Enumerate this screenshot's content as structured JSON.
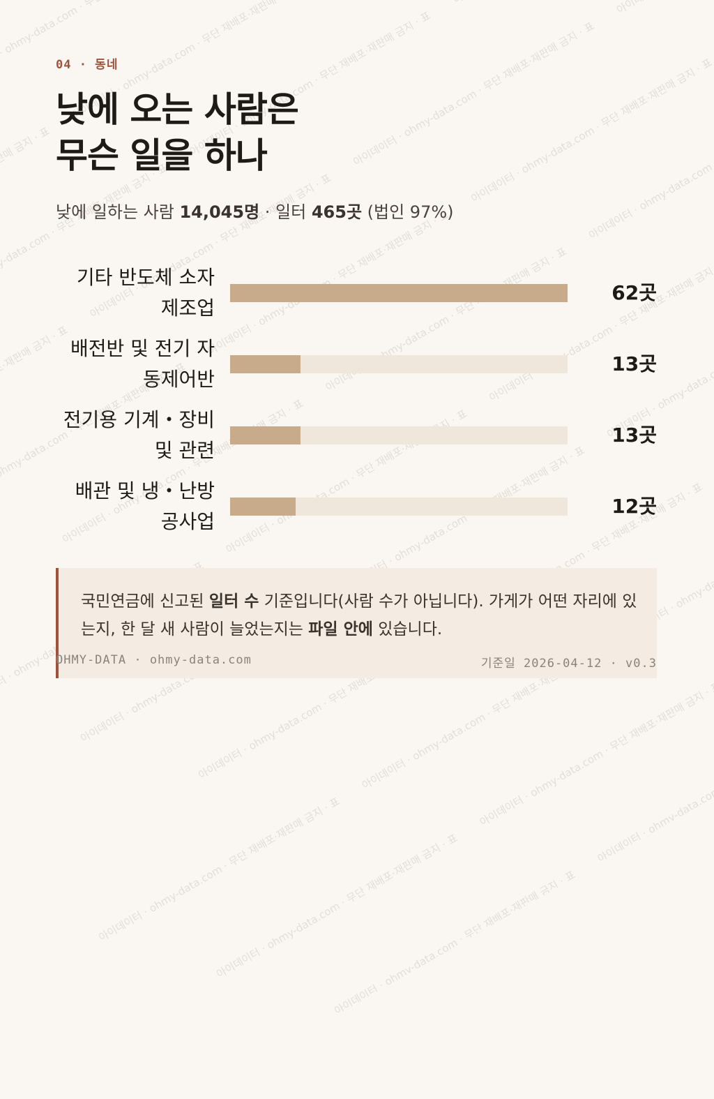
{
  "eyebrow": "04 · 동네",
  "title": [
    "낮에 오는 사람은",
    "무슨 일을 하나"
  ],
  "subtitle": [
    {
      "text": "낮에 일하는 사람 ",
      "bold": false
    },
    {
      "text": "14,045명",
      "bold": true
    },
    {
      "text": " · 일터 ",
      "bold": false
    },
    {
      "text": "465곳",
      "bold": true
    },
    {
      "text": " (법인 97%)",
      "bold": false
    }
  ],
  "chart_data": {
    "type": "bar",
    "orientation": "horizontal",
    "categories": [
      "기타 반도체 소자 제조업",
      "배전반 및 전기 자동제어반",
      "전기용 기계・장비 및 관련",
      "배관 및 냉・난방 공사업"
    ],
    "values": [
      62,
      13,
      13,
      12
    ],
    "value_labels": [
      "62곳",
      "13곳",
      "13곳",
      "12곳"
    ],
    "color": "#c8ab8b",
    "track_color": "#f0e7dc"
  },
  "note": [
    {
      "text": "국민연금에 신고된 ",
      "bold": false
    },
    {
      "text": "일터 수",
      "bold": true
    },
    {
      "text": " 기준입니다(사람 수가 아닙니다). 가게가 어떤 자리에 있는지, 한 달 새 사람이 늘었는지는 ",
      "bold": false
    },
    {
      "text": "파일 안에",
      "bold": true
    },
    {
      "text": " 있습니다.",
      "bold": false
    }
  ],
  "footer": {
    "left": "OHMY-DATA · ohmy-data.com",
    "right": "기준일 2026-04-12 · v0.3"
  },
  "watermark": "아이데이터 · ohmy-data.com · 무단 재배포·재판매 금지 · 표"
}
